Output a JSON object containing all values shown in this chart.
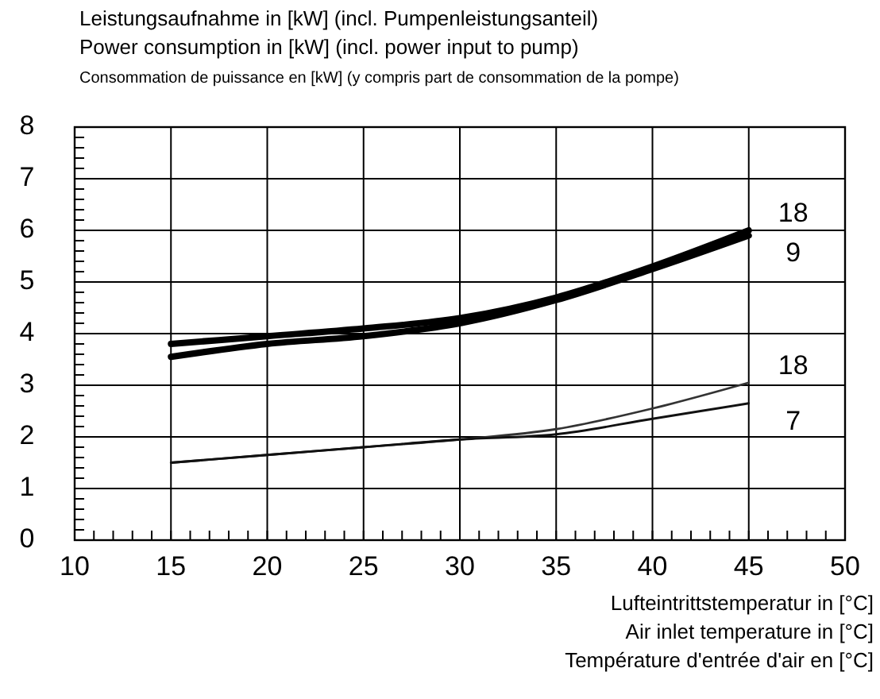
{
  "chart_data": {
    "type": "line",
    "title": "Leistungsaufnahme in [kW] (incl. Pumpenleistungsanteil)\nPower consumption in [kW] (incl. power input to pump)\nConsommation de puissance en [kW] (y compris part de consommation de la pompe)",
    "xlabel": "Lufteintrittstemperatur in [°C]\nAir inlet temperature in [°C]\nTempérature d'entrée d'air en [°C]",
    "x": [
      15,
      20,
      25,
      30,
      35,
      40,
      45
    ],
    "series": [
      {
        "name": "18",
        "color": "#000000",
        "values": [
          3.8,
          3.95,
          4.1,
          4.3,
          4.7,
          5.3,
          6.0
        ]
      },
      {
        "name": "9",
        "color": "#000000",
        "values": [
          3.55,
          3.8,
          3.95,
          4.2,
          4.65,
          5.25,
          5.9
        ]
      },
      {
        "name": "18",
        "color": "#333333",
        "values": [
          1.5,
          1.65,
          1.8,
          1.95,
          2.15,
          2.55,
          3.05
        ]
      },
      {
        "name": "7",
        "color": "#111111",
        "values": [
          1.5,
          1.65,
          1.8,
          1.95,
          2.05,
          2.35,
          2.65
        ]
      }
    ],
    "xlim": [
      10,
      50
    ],
    "xticks": [
      10,
      15,
      20,
      25,
      30,
      35,
      40,
      45,
      50
    ],
    "ylim": [
      0,
      8
    ],
    "yticks": [
      0,
      1,
      2,
      3,
      4,
      5,
      6,
      7,
      8
    ],
    "grid": true,
    "marker": "none",
    "line_style": "solid"
  }
}
